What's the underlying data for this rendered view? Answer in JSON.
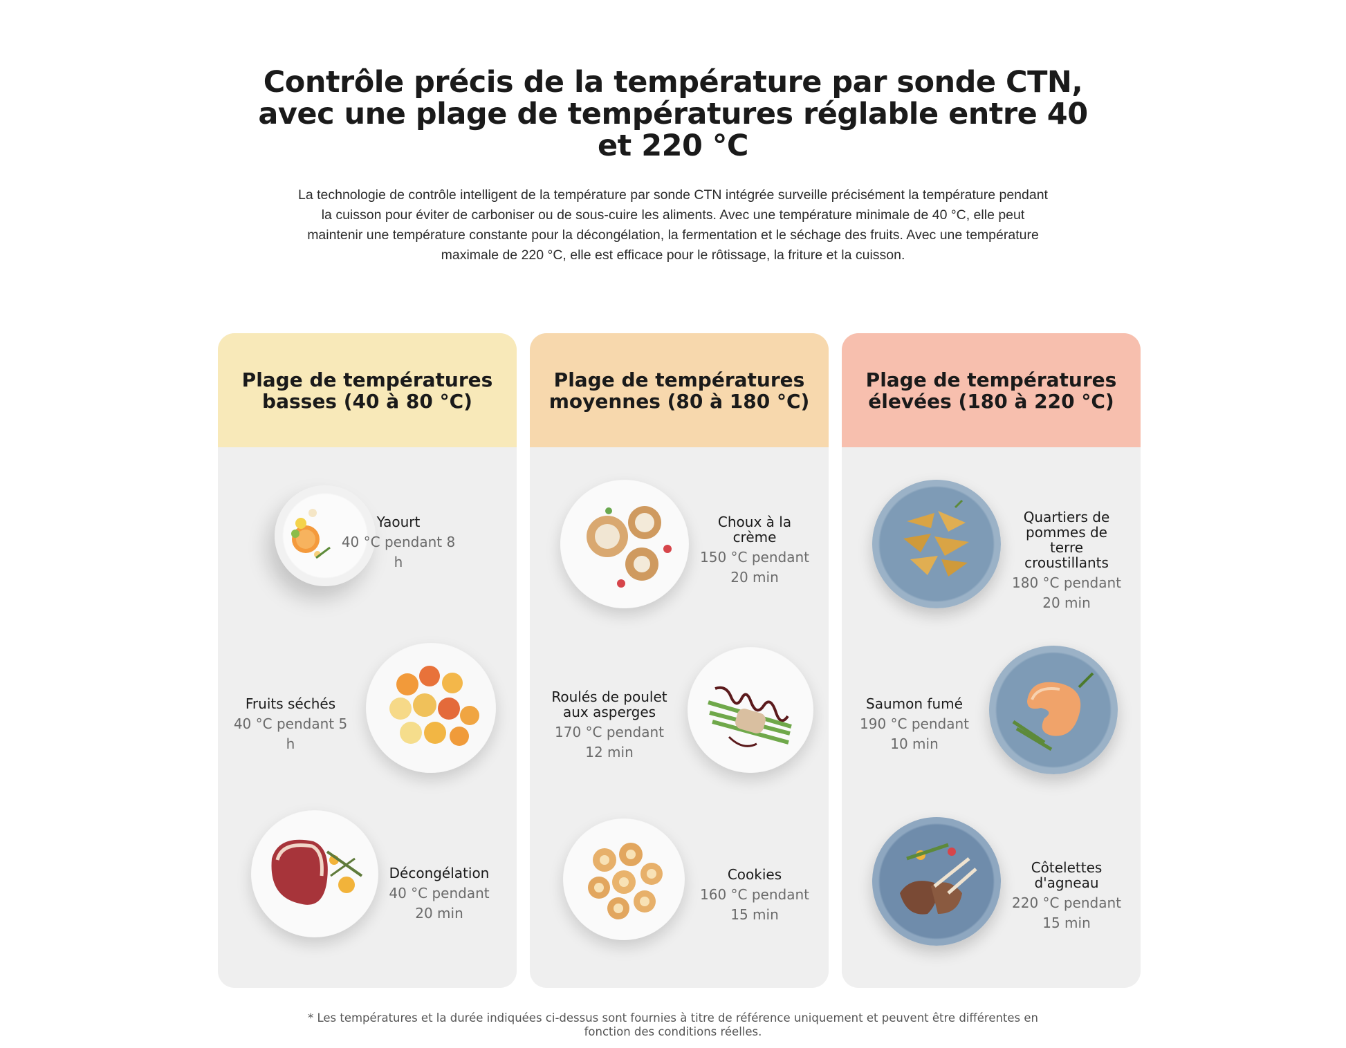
{
  "title": "Contrôle précis de la température par sonde CTN, avec une plage de températures réglable entre 40 et 220 °C",
  "intro": "La technologie de contrôle intelligent de la température par sonde CTN intégrée surveille précisément la température pendant la cuisson pour éviter de carboniser ou de sous-cuire les aliments. Avec une température minimale de 40 °C, elle peut maintenir une température constante pour la décongélation, la fermentation et le séchage des fruits. Avec une température maximale de 220 °C, elle est efficace pour le rôtissage, la friture et la cuisson.",
  "colors": {
    "low": "#f8e9b9",
    "medium": "#f7d8ad",
    "high": "#f7bfae",
    "card_body": "#efefef"
  },
  "cards": [
    {
      "heading": "Plage de températures basses (40 à 80 °C)",
      "items": [
        {
          "name": "Yaourt",
          "info": "40 °C pendant 8 h",
          "icon": "yogurt-bowl-icon"
        },
        {
          "name": "Fruits séchés",
          "info": "40 °C pendant 5 h",
          "icon": "dried-fruit-plate-icon"
        },
        {
          "name": "Décongélation",
          "info": "40 °C pendant 20 min",
          "icon": "steak-plate-icon"
        }
      ]
    },
    {
      "heading": "Plage de températures moyennes (80 à 180 °C)",
      "items": [
        {
          "name": "Choux à la crème",
          "info": "150 °C pendant 20 min",
          "icon": "cream-puff-plate-icon"
        },
        {
          "name": "Roulés de poulet aux asperges",
          "info": "170 °C pendant 12 min",
          "icon": "chicken-roll-plate-icon"
        },
        {
          "name": "Cookies",
          "info": "160 °C pendant 15 min",
          "icon": "cookies-plate-icon"
        }
      ]
    },
    {
      "heading": "Plage de températures élevées (180 à 220 °C)",
      "items": [
        {
          "name": "Quartiers de pommes de terre croustillants",
          "info": "180 °C pendant 20 min",
          "icon": "potato-wedges-plate-icon"
        },
        {
          "name": "Saumon fumé",
          "info": "190 °C pendant 10 min",
          "icon": "salmon-plate-icon"
        },
        {
          "name": "Côtelettes d'agneau",
          "info": "220 °C pendant 15 min",
          "icon": "lamb-chops-plate-icon"
        }
      ]
    }
  ],
  "footnote": "* Les températures et la durée indiquées ci-dessus sont fournies à titre de référence uniquement et peuvent être différentes en fonction des conditions réelles."
}
